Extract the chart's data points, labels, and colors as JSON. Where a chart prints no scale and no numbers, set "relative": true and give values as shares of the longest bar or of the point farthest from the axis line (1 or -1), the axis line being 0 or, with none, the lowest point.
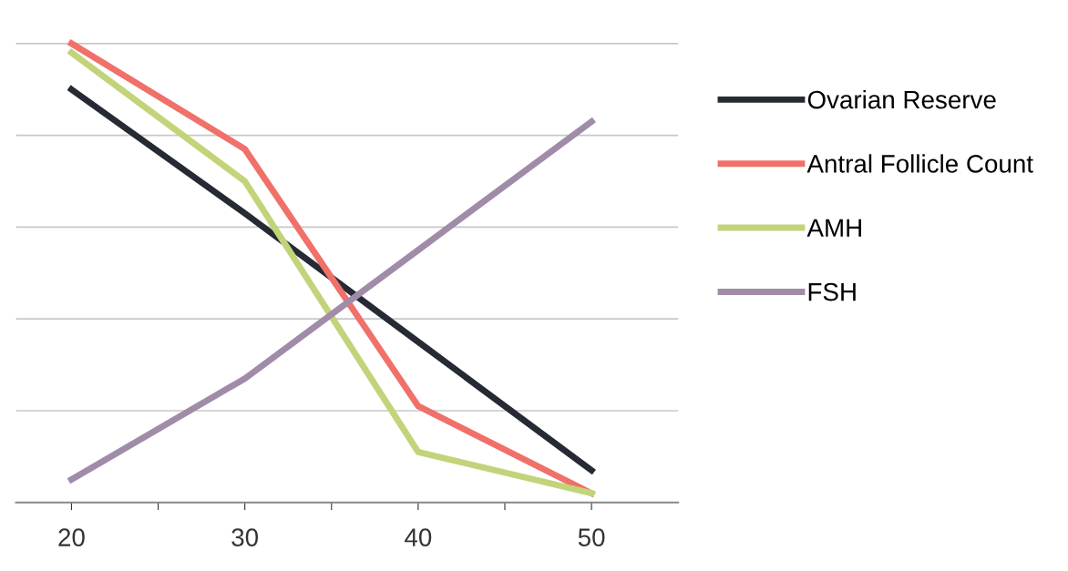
{
  "chart_data": {
    "type": "line",
    "relative": true,
    "x": [
      20,
      30,
      40,
      50
    ],
    "xlim": [
      16.8,
      55
    ],
    "xticks": [
      20,
      {
        "value": 25,
        "label": null
      },
      30,
      {
        "value": 35,
        "label": null
      },
      40,
      {
        "value": 45,
        "label": null
      },
      50
    ],
    "series": [
      {
        "name": "Ovarian Reserve",
        "color": "#262a33",
        "values": [
          0.9,
          0.63,
          0.35,
          0.07
        ]
      },
      {
        "name": "Antral Follicle Count",
        "color": "#f0706a",
        "values": [
          1.0,
          0.77,
          0.21,
          0.02
        ]
      },
      {
        "name": "AMH",
        "color": "#c2d47a",
        "values": [
          0.98,
          0.7,
          0.11,
          0.02
        ]
      },
      {
        "name": "FSH",
        "color": "#a08ca8",
        "values": [
          0.05,
          0.27,
          0.55,
          0.83
        ]
      }
    ],
    "grid": "y",
    "legend": "right",
    "marker": "none",
    "line_style": "solid"
  }
}
